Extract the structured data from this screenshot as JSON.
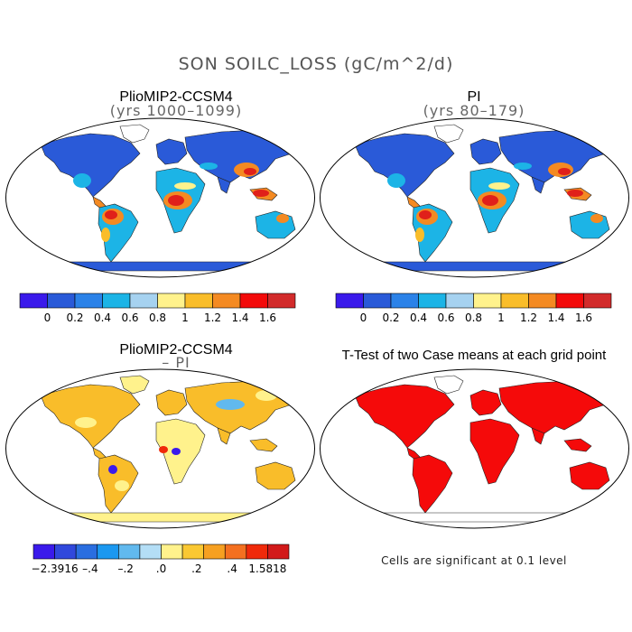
{
  "title": "SON SOILC_LOSS (gC/m^2/d)",
  "panels": [
    {
      "title": "PlioMIP2-CCSM4",
      "subtitle": "(yrs 1000–1099)"
    },
    {
      "title": "PI",
      "subtitle": "(yrs 80–179)"
    },
    {
      "title": "PlioMIP2-CCSM4",
      "subtitle": "– PI"
    },
    {
      "title": "T-Test of two Case means at each grid point",
      "subtitle": ""
    }
  ],
  "colorbar_abs": {
    "colors": [
      "#3a1aeb",
      "#2a5ad8",
      "#2b82e8",
      "#1cb4e6",
      "#a6d2f0",
      "#fff28c",
      "#f9bd2a",
      "#f48a22",
      "#f30a0a",
      "#d22b2b"
    ],
    "labels": [
      "0",
      "0.2",
      "0.4",
      "0.6",
      "0.8",
      "1",
      "1.2",
      "1.4",
      "1.6"
    ]
  },
  "colorbar_diff": {
    "colors": [
      "#3a1aeb",
      "#3048dc",
      "#2a6ee0",
      "#1b98f0",
      "#61b9ee",
      "#b4def6",
      "#fff28c",
      "#fac832",
      "#f6a021",
      "#f47020",
      "#f02a0a",
      "#d21a1a"
    ],
    "labels": [
      "−2.3916",
      "–.4",
      "–.2",
      ".0",
      ".2",
      ".4",
      "1.5818"
    ]
  },
  "note": "Cells are significant at 0.1 level",
  "colors": {
    "ocean": "#ffffff",
    "land_cold": "#2a5ad8",
    "land_mid": "#1cb4e6",
    "land_warm": "#f48a22",
    "land_hot": "#e0201a",
    "diff_base": "#f9bd2a",
    "diff_pale": "#fff28c",
    "diff_blue": "#61b9ee",
    "sig": "#f50a0a"
  }
}
